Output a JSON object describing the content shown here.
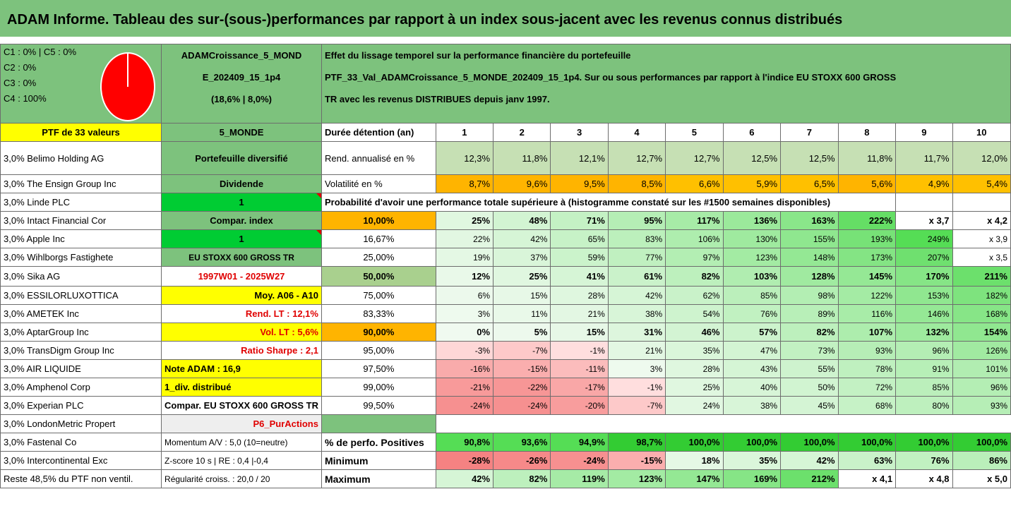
{
  "title": "ADAM Informe. Tableau des sur-(sous-)performances par rapport à un index sous-jacent avec les revenus connus distribués",
  "header": {
    "legend": [
      "C1 : 0% | C5 : 0%",
      "C2 : 0%",
      "C3 : 0%",
      "C4 : 100%"
    ],
    "pie": {
      "C4": 100,
      "color": "#ff0000"
    },
    "portfolio_lines": [
      "ADAMCroissance_5_MOND",
      "E_202409_15_1p4",
      "(18,6% | 8,0%)"
    ],
    "desc_lines": [
      "Effet du lissage temporel sur la performance financière du portefeuille",
      "PTF_33_Val_ADAMCroissance_5_MONDE_202409_15_1p4. Sur ou sous performances par rapport à l'indice EU STOXX 600 GROSS",
      "TR avec les revenus DISTRIBUES depuis janv 1997."
    ]
  },
  "ptf_label": "PTF de 33 valeurs",
  "profile": "5_MONDE",
  "duration_label": "Durée détention (an)",
  "years": [
    "1",
    "2",
    "3",
    "4",
    "5",
    "6",
    "7",
    "8",
    "9",
    "10"
  ],
  "holdings": [
    "3,0% Belimo Holding AG",
    "3,0% The Ensign Group Inc",
    "3,0% Linde PLC",
    "3,0% Intact Financial Cor",
    "3,0% Apple Inc",
    "3,0% Wihlborgs Fastighete",
    "3,0% Sika AG",
    "3,0% ESSILORLUXOTTICA",
    "3,0% AMETEK Inc",
    "3,0% AptarGroup Inc",
    "3,0% TransDigm Group Inc",
    "3,0% AIR LIQUIDE",
    "3,0% Amphenol Corp",
    "3,0% Experian PLC",
    "3,0% LondonMetric Propert",
    "3,0% Fastenal Co",
    "3,0% Intercontinental Exc",
    "Reste 48,5% du PTF non ventil."
  ],
  "mid": [
    "Portefeuille diversifié",
    "Dividende",
    "1",
    "Compar. index",
    "1",
    "EU STOXX 600 GROSS TR",
    "1997W01 - 2025W27",
    "Moy. A06 - A10",
    "Rend. LT : 12,1%",
    "Vol. LT : 5,6%",
    "Ratio Sharpe : 2,1",
    "Note ADAM : 16,9",
    "1_div. distribué",
    "Compar. EU STOXX 600 GROSS TR",
    "P6_PurActions",
    "Momentum A/V : 5,0 (10=neutre)",
    "Z-score 10 s | RE : 0,4 |-0,4",
    "Régularité croiss. : 20,0 / 20"
  ],
  "rend": {
    "label": "Rend. annualisé en %",
    "values": [
      "12,3%",
      "11,8%",
      "12,1%",
      "12,7%",
      "12,7%",
      "12,5%",
      "12,5%",
      "11,8%",
      "11,7%",
      "12,0%"
    ]
  },
  "vol": {
    "label": "Volatilité en %",
    "values": [
      "8,7%",
      "9,6%",
      "9,5%",
      "8,5%",
      "6,6%",
      "5,9%",
      "6,5%",
      "5,6%",
      "4,9%",
      "5,4%"
    ]
  },
  "prob_title": "Probabilité d'avoir une performance totale supérieure à (histogramme constaté sur les #1500 semaines disponibles)",
  "prob_rows": [
    {
      "p": "10,00%",
      "v": [
        "25%",
        "48%",
        "71%",
        "95%",
        "117%",
        "136%",
        "163%",
        "222%",
        "x 3,7",
        "x 4,2"
      ]
    },
    {
      "p": "16,67%",
      "v": [
        "22%",
        "42%",
        "65%",
        "83%",
        "106%",
        "130%",
        "155%",
        "193%",
        "249%",
        "x 3,9"
      ]
    },
    {
      "p": "25,00%",
      "v": [
        "19%",
        "37%",
        "59%",
        "77%",
        "97%",
        "123%",
        "148%",
        "173%",
        "207%",
        "x 3,5"
      ]
    },
    {
      "p": "50,00%",
      "v": [
        "12%",
        "25%",
        "41%",
        "61%",
        "82%",
        "103%",
        "128%",
        "145%",
        "170%",
        "211%"
      ]
    },
    {
      "p": "75,00%",
      "v": [
        "6%",
        "15%",
        "28%",
        "42%",
        "62%",
        "85%",
        "98%",
        "122%",
        "153%",
        "182%"
      ]
    },
    {
      "p": "83,33%",
      "v": [
        "3%",
        "11%",
        "21%",
        "38%",
        "54%",
        "76%",
        "89%",
        "116%",
        "146%",
        "168%"
      ]
    },
    {
      "p": "90,00%",
      "v": [
        "0%",
        "5%",
        "15%",
        "31%",
        "46%",
        "57%",
        "82%",
        "107%",
        "132%",
        "154%"
      ]
    },
    {
      "p": "95,00%",
      "v": [
        "-3%",
        "-7%",
        "-1%",
        "21%",
        "35%",
        "47%",
        "73%",
        "93%",
        "96%",
        "126%"
      ]
    },
    {
      "p": "97,50%",
      "v": [
        "-16%",
        "-15%",
        "-11%",
        "3%",
        "28%",
        "43%",
        "55%",
        "78%",
        "91%",
        "101%"
      ]
    },
    {
      "p": "99,00%",
      "v": [
        "-21%",
        "-22%",
        "-17%",
        "-1%",
        "25%",
        "40%",
        "50%",
        "72%",
        "85%",
        "96%"
      ]
    },
    {
      "p": "99,50%",
      "v": [
        "-24%",
        "-24%",
        "-20%",
        "-7%",
        "24%",
        "38%",
        "45%",
        "68%",
        "80%",
        "93%"
      ]
    }
  ],
  "pos": {
    "label": "% de perfo. Positives",
    "values": [
      "90,8%",
      "93,6%",
      "94,9%",
      "98,7%",
      "100,0%",
      "100,0%",
      "100,0%",
      "100,0%",
      "100,0%",
      "100,0%"
    ]
  },
  "min": {
    "label": "Minimum",
    "values": [
      "-28%",
      "-26%",
      "-24%",
      "-15%",
      "18%",
      "35%",
      "42%",
      "63%",
      "76%",
      "86%"
    ]
  },
  "max": {
    "label": "Maximum",
    "values": [
      "42%",
      "82%",
      "119%",
      "123%",
      "147%",
      "169%",
      "212%",
      "x 4,1",
      "x 4,8",
      "x 5,0"
    ]
  },
  "colors": {
    "header_green": "#7dc27d",
    "bright_green": "#00cc33",
    "yellow": "#ffff00",
    "orange": "#ffb400",
    "red_text": "#e00000"
  }
}
